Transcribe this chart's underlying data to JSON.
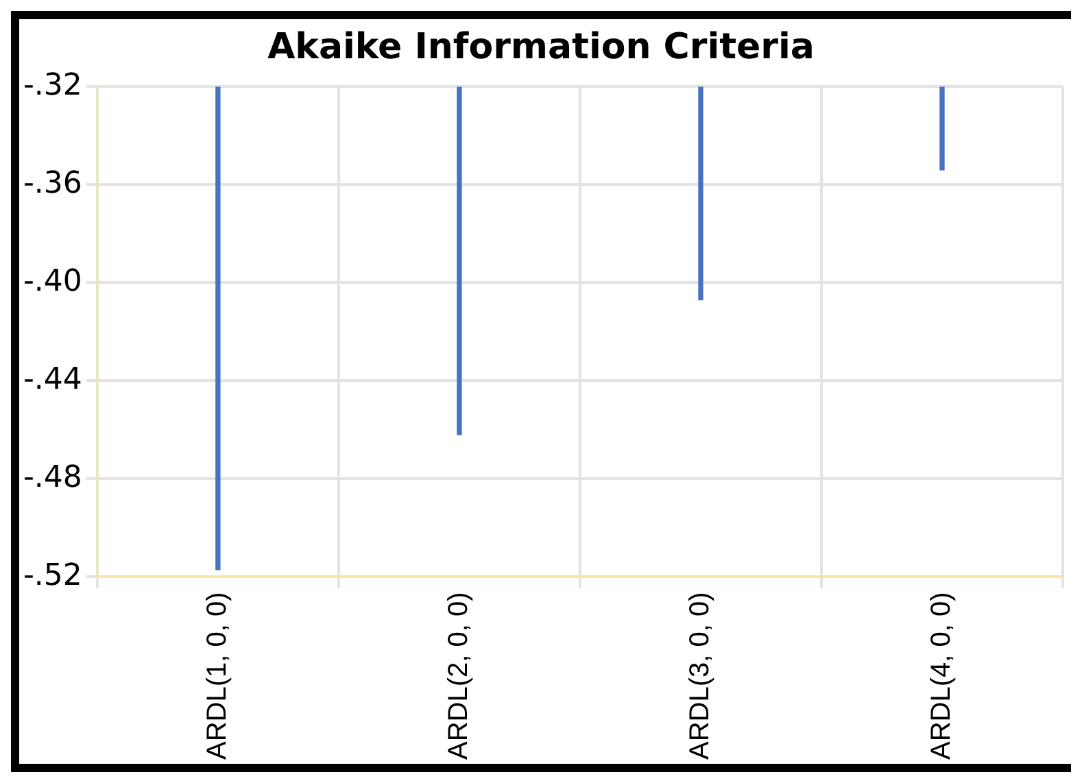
{
  "chart_data": {
    "type": "bar",
    "title": "Akaike Information Criteria",
    "categories": [
      "ARDL(1, 0, 0)",
      "ARDL(2, 0, 0)",
      "ARDL(3, 0, 0)",
      "ARDL(4, 0, 0)"
    ],
    "values": [
      -0.517,
      -0.462,
      -0.407,
      -0.354
    ],
    "color": "#4472c4",
    "ylim": [
      -0.52,
      -0.32
    ],
    "yticks": [
      {
        "value": -0.52,
        "label": "-.52"
      },
      {
        "value": -0.48,
        "label": "-.48"
      },
      {
        "value": -0.44,
        "label": "-.44"
      },
      {
        "value": -0.4,
        "label": "-.40"
      },
      {
        "value": -0.36,
        "label": "-.36"
      },
      {
        "value": -0.32,
        "label": "-.32"
      }
    ],
    "grid": true
  }
}
